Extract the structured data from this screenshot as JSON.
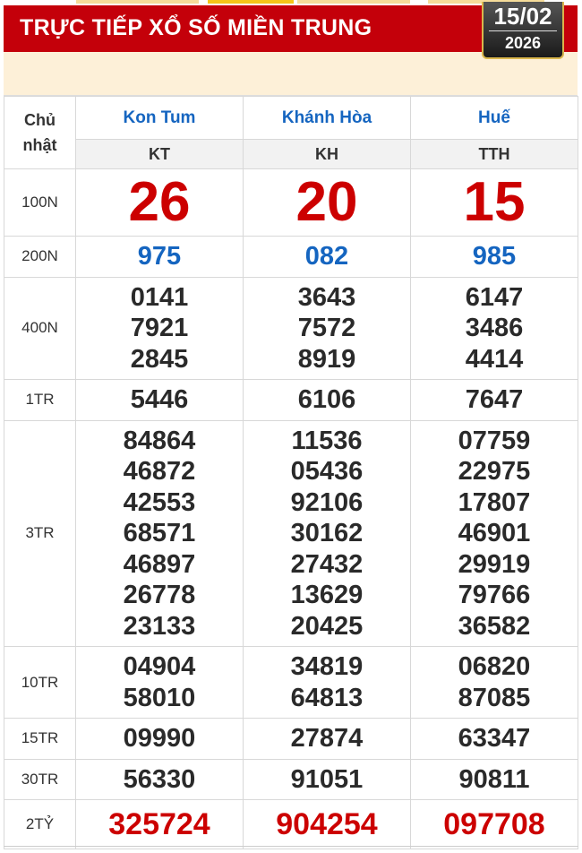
{
  "header": {
    "title": "TRỰC TIẾP XỔ SỐ MIỀN TRUNG",
    "date": "15/02",
    "year": "2026"
  },
  "table": {
    "day_label": "Chủ nhật",
    "provinces": [
      {
        "name": "Kon Tum",
        "code": "KT"
      },
      {
        "name": "Khánh Hòa",
        "code": "KH"
      },
      {
        "name": "Huế",
        "code": "TTH"
      }
    ],
    "rows": [
      {
        "label": "100N",
        "style": "big",
        "values": [
          [
            "26"
          ],
          [
            "20"
          ],
          [
            "15"
          ]
        ]
      },
      {
        "label": "200N",
        "style": "blue",
        "values": [
          [
            "975"
          ],
          [
            "082"
          ],
          [
            "985"
          ]
        ]
      },
      {
        "label": "400N",
        "style": "",
        "values": [
          [
            "0141",
            "7921",
            "2845"
          ],
          [
            "3643",
            "7572",
            "8919"
          ],
          [
            "6147",
            "3486",
            "4414"
          ]
        ]
      },
      {
        "label": "1TR",
        "style": "",
        "values": [
          [
            "5446"
          ],
          [
            "6106"
          ],
          [
            "7647"
          ]
        ]
      },
      {
        "label": "3TR",
        "style": "",
        "values": [
          [
            "84864",
            "46872",
            "42553",
            "68571",
            "46897",
            "26778",
            "23133"
          ],
          [
            "11536",
            "05436",
            "92106",
            "30162",
            "27432",
            "13629",
            "20425"
          ],
          [
            "07759",
            "22975",
            "17807",
            "46901",
            "29919",
            "79766",
            "36582"
          ]
        ]
      },
      {
        "label": "10TR",
        "style": "",
        "values": [
          [
            "04904",
            "58010"
          ],
          [
            "34819",
            "64813"
          ],
          [
            "06820",
            "87085"
          ]
        ]
      },
      {
        "label": "15TR",
        "style": "",
        "values": [
          [
            "09990"
          ],
          [
            "27874"
          ],
          [
            "63347"
          ]
        ]
      },
      {
        "label": "30TR",
        "style": "",
        "values": [
          [
            "56330"
          ],
          [
            "91051"
          ],
          [
            "90811"
          ]
        ]
      },
      {
        "label": "2TỶ",
        "style": "red",
        "values": [
          [
            "325724"
          ],
          [
            "904254"
          ],
          [
            "097708"
          ]
        ]
      }
    ]
  },
  "colors": {
    "banner": "#c4000a",
    "province": "#1565c0",
    "special": "#cc0000"
  }
}
